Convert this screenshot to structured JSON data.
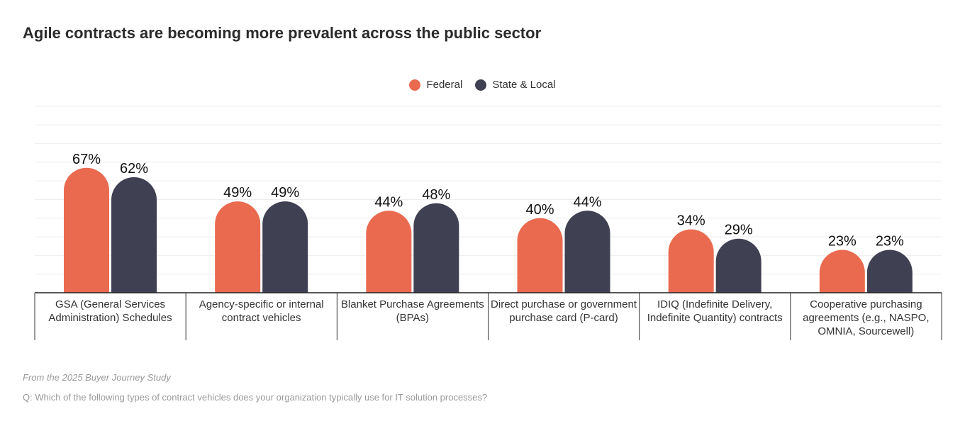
{
  "title": "Agile contracts are becoming more prevalent across the public sector",
  "colors": {
    "federal": "#EA6A4F",
    "state": "#3F4052"
  },
  "chart_data": {
    "type": "bar",
    "title": "Agile contracts are becoming more prevalent across the public sector",
    "categories": [
      "GSA (General Services Administration) Schedules",
      "Agency-specific or internal contract vehicles",
      "Blanket Purchase Agreements (BPAs)",
      "Direct purchase or government purchase card (P-card)",
      "IDIQ (Indefinite Delivery, Indefinite Quantity) contracts",
      "Cooperative purchasing agreements (e.g., NASPO, OMNIA, Sourcewell)"
    ],
    "series": [
      {
        "name": "Federal",
        "values": [
          67,
          49,
          44,
          40,
          34,
          23
        ]
      },
      {
        "name": "State & Local",
        "values": [
          62,
          49,
          48,
          44,
          29,
          23
        ]
      }
    ],
    "value_labels": [
      [
        "67%",
        "49%",
        "44%",
        "40%",
        "34%",
        "23%"
      ],
      [
        "62%",
        "49%",
        "48%",
        "44%",
        "29%",
        "23%"
      ]
    ],
    "ylim": [
      0,
      100
    ],
    "grid": true,
    "legend_position": "top-center",
    "xlabel": "",
    "ylabel": ""
  },
  "footer": {
    "source": "From the 2025 Buyer Journey Study",
    "question": "Q: Which of the following types of contract vehicles does your organization typically use for IT solution processes?"
  }
}
